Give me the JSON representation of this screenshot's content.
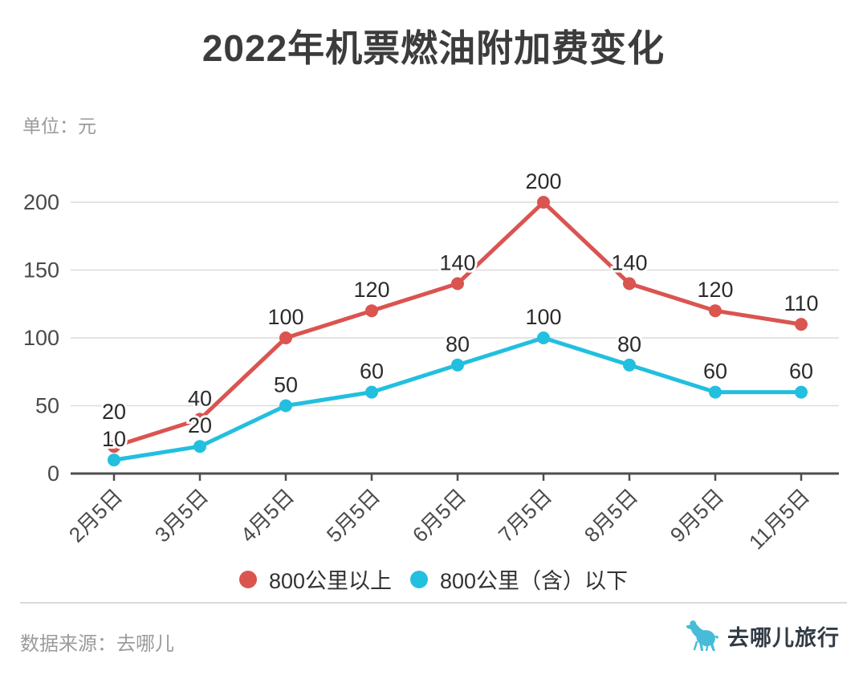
{
  "title": "2022年机票燃油附加费变化",
  "unit_label": "单位：元",
  "footer": {
    "source": "数据来源：去哪儿",
    "brand": "去哪儿旅行"
  },
  "colors": {
    "red": "#DA5450",
    "cyan": "#22BFDF",
    "grid": "#DCDCDC",
    "axis": "#4D4D4D",
    "axis_label": "#4A4A4A",
    "value_label": "#2B2B2B",
    "divider": "#DADADA",
    "muted": "#9B9B9B",
    "brand": "#47BCD9",
    "brand_text": "#323B44"
  },
  "chart_data": {
    "type": "line",
    "title": "2022年机票燃油附加费变化",
    "ylabel": "单位：元",
    "categories": [
      "2月5日",
      "3月5日",
      "4月5日",
      "5月5日",
      "6月5日",
      "7月5日",
      "8月5日",
      "9月5日",
      "11月5日"
    ],
    "series": [
      {
        "name": "800公里以上",
        "color_key": "red",
        "values": [
          20,
          40,
          100,
          120,
          140,
          200,
          140,
          120,
          110
        ]
      },
      {
        "name": "800公里（含）以下",
        "color_key": "cyan",
        "values": [
          10,
          20,
          50,
          60,
          80,
          100,
          80,
          60,
          60
        ]
      }
    ],
    "yticks": [
      0,
      50,
      100,
      150,
      200
    ],
    "ylim": [
      0,
      200
    ],
    "grid": true,
    "legend_position": "bottom",
    "data_labels": true
  }
}
